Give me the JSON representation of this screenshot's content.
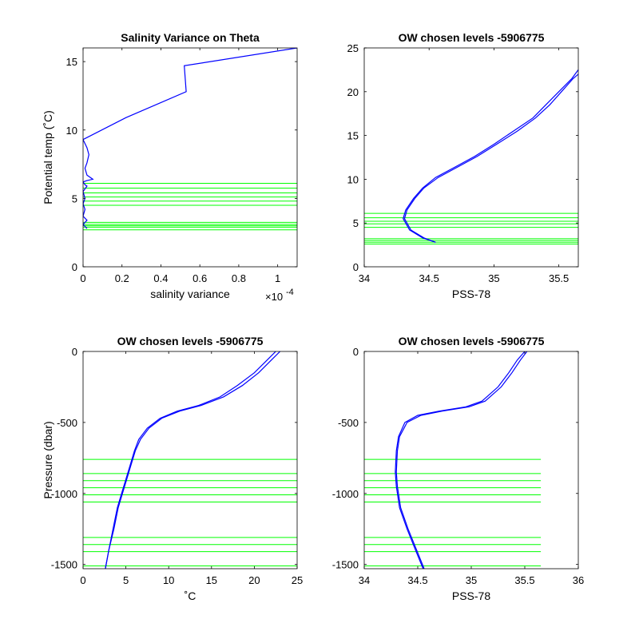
{
  "colors": {
    "profile": "#0000ff",
    "levels": "#00ff00",
    "axis": "#000000",
    "background": "#ffffff"
  },
  "chart_data": [
    {
      "type": "line",
      "title": "Salinity Variance on Theta",
      "xlabel": "salinity variance",
      "ylabel": "Potential temp (˚C)",
      "x_exponent_label": "×10",
      "x_exponent_power": "-4",
      "xlim": [
        0,
        1.1
      ],
      "ylim": [
        0,
        16
      ],
      "xticks": [
        0,
        0.2,
        0.4,
        0.6,
        0.8,
        1
      ],
      "xtick_labels": [
        "0",
        "0.2",
        "0.4",
        "0.6",
        "0.8",
        "1"
      ],
      "yticks": [
        0,
        5,
        10,
        15
      ],
      "ytick_labels": [
        "0",
        "5",
        "10",
        "15"
      ],
      "series": [
        {
          "x": [
            0.02,
            0.0,
            0.02,
            0.0,
            0.01,
            0.0,
            0.01,
            0.0,
            0.02,
            0.01,
            0.0,
            0.02,
            0.05,
            0.02,
            0.01,
            0.02,
            0.03,
            0.02,
            0.0,
            0.22,
            0.53,
            0.52,
            1.1
          ],
          "y": [
            2.8,
            3.1,
            3.4,
            3.7,
            4.2,
            4.6,
            5.0,
            5.5,
            5.9,
            6.0,
            6.2,
            6.3,
            6.4,
            6.7,
            7.2,
            7.6,
            8.2,
            8.7,
            9.3,
            10.9,
            12.8,
            14.7,
            16.0
          ]
        }
      ],
      "hlines": [
        2.7,
        2.9,
        3.0,
        3.1,
        3.25,
        4.5,
        4.8,
        5.1,
        5.4,
        5.75,
        6.1
      ],
      "hline_range": [
        0,
        1.1
      ]
    },
    {
      "type": "line",
      "title": "OW chosen levels -5906775",
      "xlabel": "PSS-78",
      "ylabel": "",
      "xlim": [
        34,
        35.65
      ],
      "ylim": [
        0,
        25
      ],
      "xticks": [
        34,
        34.5,
        35,
        35.5
      ],
      "xtick_labels": [
        "34",
        "34.5",
        "35",
        "35.5"
      ],
      "yticks": [
        0,
        5,
        10,
        15,
        20,
        25
      ],
      "ytick_labels": [
        "0",
        "5",
        "10",
        "15",
        "20",
        "25"
      ],
      "series": [
        {
          "x": [
            34.55,
            34.45,
            34.35,
            34.3,
            34.32,
            34.38,
            34.45,
            34.55,
            34.7,
            34.85,
            35.0,
            35.15,
            35.3,
            35.4,
            35.5,
            35.6,
            35.65
          ],
          "y": [
            2.8,
            3.3,
            4.2,
            5.5,
            6.5,
            7.8,
            9.0,
            10.2,
            11.4,
            12.6,
            14.0,
            15.5,
            17.0,
            18.5,
            20.0,
            21.5,
            22.5
          ]
        },
        {
          "x": [
            34.55,
            34.46,
            34.36,
            34.31,
            34.33,
            34.39,
            34.46,
            34.57,
            34.72,
            34.87,
            35.02,
            35.18,
            35.32,
            35.43,
            35.52,
            35.61,
            35.65
          ],
          "y": [
            2.8,
            3.3,
            4.2,
            5.5,
            6.5,
            7.8,
            9.0,
            10.2,
            11.4,
            12.6,
            14.0,
            15.5,
            17.0,
            18.5,
            20.0,
            21.5,
            22.0
          ]
        }
      ],
      "hlines": [
        2.6,
        2.8,
        3.0,
        3.2,
        4.5,
        4.9,
        5.2,
        5.6,
        6.1
      ],
      "hline_range": [
        34,
        35.65
      ]
    },
    {
      "type": "line",
      "title": "OW chosen levels -5906775",
      "xlabel": "˚C",
      "ylabel": "Pressure (dbar)",
      "xlim": [
        0,
        25
      ],
      "ylim": [
        -1530,
        0
      ],
      "xticks": [
        0,
        5,
        10,
        15,
        20,
        25
      ],
      "xtick_labels": [
        "0",
        "5",
        "10",
        "15",
        "20",
        "25"
      ],
      "yticks": [
        -1500,
        -1000,
        -500,
        0
      ],
      "ytick_labels": [
        "-1500",
        "-1000",
        "-500",
        "0"
      ],
      "series": [
        {
          "x": [
            2.6,
            3.0,
            3.5,
            4.0,
            4.5,
            5.0,
            5.5,
            6.0,
            6.5,
            7.5,
            9.0,
            11.0,
            13.5,
            16.0,
            18.0,
            20.0,
            21.5,
            22.5
          ],
          "y": [
            -1530,
            -1400,
            -1250,
            -1100,
            -1000,
            -900,
            -800,
            -700,
            -620,
            -540,
            -470,
            -420,
            -380,
            -320,
            -240,
            -150,
            -60,
            0
          ]
        },
        {
          "x": [
            2.6,
            3.0,
            3.6,
            4.1,
            4.6,
            5.1,
            5.6,
            6.1,
            6.7,
            7.7,
            9.2,
            11.3,
            13.8,
            16.4,
            18.6,
            20.5,
            22.0,
            23.0
          ],
          "y": [
            -1530,
            -1400,
            -1250,
            -1100,
            -1000,
            -900,
            -800,
            -700,
            -620,
            -540,
            -470,
            -420,
            -380,
            -320,
            -240,
            -150,
            -60,
            0
          ]
        }
      ],
      "hlines": [
        -760,
        -860,
        -910,
        -960,
        -1010,
        -1060,
        -1310,
        -1360,
        -1410,
        -1510
      ],
      "hline_range": [
        0,
        25
      ]
    },
    {
      "type": "line",
      "title": "OW chosen levels -5906775",
      "xlabel": "PSS-78",
      "ylabel": "",
      "xlim": [
        34,
        36
      ],
      "ylim": [
        -1530,
        0
      ],
      "xticks": [
        34,
        34.5,
        35,
        35.5,
        36
      ],
      "xtick_labels": [
        "34",
        "34.5",
        "35",
        "35.5",
        "36"
      ],
      "yticks": [
        -1500,
        -1000,
        -500,
        0
      ],
      "ytick_labels": [
        "-1500",
        "-1000",
        "-500",
        "0"
      ],
      "series": [
        {
          "x": [
            34.55,
            34.48,
            34.4,
            34.33,
            34.3,
            34.29,
            34.3,
            34.32,
            34.38,
            34.5,
            34.7,
            34.95,
            35.1,
            35.25,
            35.35,
            35.43,
            35.5
          ],
          "y": [
            -1530,
            -1400,
            -1250,
            -1100,
            -950,
            -850,
            -700,
            -600,
            -500,
            -450,
            -420,
            -390,
            -350,
            -250,
            -150,
            -60,
            0
          ]
        },
        {
          "x": [
            34.56,
            34.49,
            34.41,
            34.34,
            34.31,
            34.3,
            34.31,
            34.33,
            34.4,
            34.53,
            34.73,
            34.98,
            35.13,
            35.28,
            35.38,
            35.46,
            35.52
          ],
          "y": [
            -1530,
            -1400,
            -1250,
            -1100,
            -950,
            -850,
            -700,
            -600,
            -500,
            -450,
            -420,
            -390,
            -350,
            -250,
            -150,
            -60,
            0
          ]
        }
      ],
      "hlines": [
        -760,
        -860,
        -910,
        -960,
        -1010,
        -1060,
        -1310,
        -1360,
        -1410,
        -1510
      ],
      "hline_range": [
        34,
        35.65
      ]
    }
  ]
}
